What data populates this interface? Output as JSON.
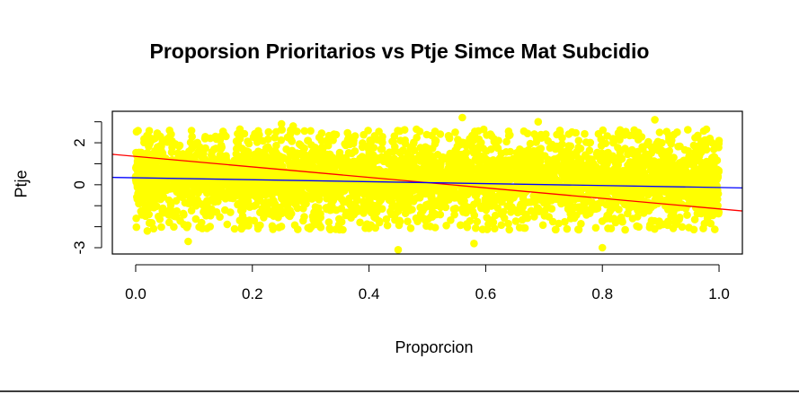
{
  "colors": {
    "points": "#ffff00",
    "fit_red": "#ff0000",
    "fit_blue": "#0000ff",
    "axis": "#000000",
    "background": "#ffffff"
  },
  "chart_data": {
    "type": "scatter",
    "title": "Proporsion Prioritarios vs Ptje Simce Mat Subcidio",
    "xlabel": "Proporcion",
    "ylabel": "Ptje",
    "xlim": [
      -0.04,
      1.04
    ],
    "ylim": [
      -3.3,
      3.5
    ],
    "x_ticks": [
      "0.0",
      "0.2",
      "0.4",
      "0.6",
      "0.8",
      "1.0"
    ],
    "y_ticks": [
      "-3",
      "0",
      "2"
    ],
    "y_tick_values": [
      -3,
      0,
      2
    ],
    "x_tick_values": [
      0,
      0.2,
      0.4,
      0.6,
      0.8,
      1.0
    ],
    "grid": false,
    "legend": "none",
    "point_cloud": {
      "x_range": [
        0,
        1
      ],
      "y_center_range": [
        -2.3,
        2.7
      ],
      "outliers": [
        {
          "x": 0.09,
          "y": -2.7
        },
        {
          "x": 0.45,
          "y": -3.1
        },
        {
          "x": 0.56,
          "y": 3.2
        },
        {
          "x": 0.8,
          "y": -3.0
        },
        {
          "x": 0.89,
          "y": 3.1
        },
        {
          "x": 0.69,
          "y": 3.0
        },
        {
          "x": 0.25,
          "y": 2.9
        },
        {
          "x": 0.58,
          "y": -2.8
        },
        {
          "x": 0.02,
          "y": -2.2
        },
        {
          "x": 0.27,
          "y": 2.8
        },
        {
          "x": 1.0,
          "y": 2.1
        }
      ]
    },
    "series": [
      {
        "type": "line",
        "color": "red",
        "x": [
          -0.04,
          1.04
        ],
        "y": [
          1.45,
          -1.25
        ]
      },
      {
        "type": "line",
        "color": "blue",
        "x": [
          -0.04,
          1.04
        ],
        "y": [
          0.35,
          -0.15
        ]
      }
    ]
  }
}
